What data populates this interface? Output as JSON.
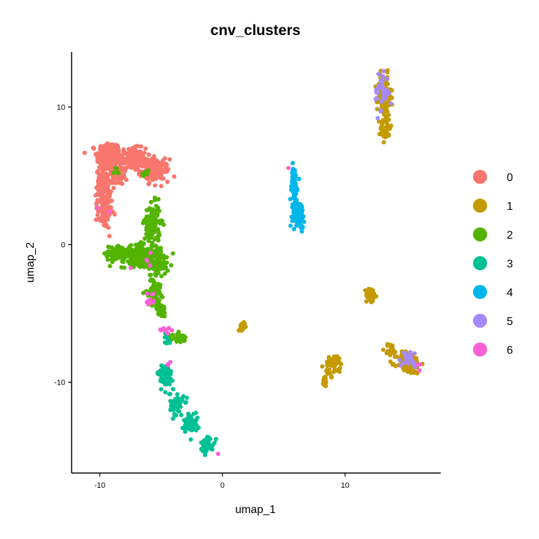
{
  "chart_data": {
    "type": "scatter",
    "title": "cnv_clusters",
    "xlabel": "umap_1",
    "ylabel": "umap_2",
    "xlim": [
      -12.3,
      17.8
    ],
    "ylim": [
      -16.6,
      14
    ],
    "xticks": [
      -10,
      0,
      10
    ],
    "yticks": [
      -10,
      0,
      10
    ],
    "grid": false,
    "legend_position": "right",
    "series": [
      {
        "name": "0",
        "color": "#F8766D",
        "clusters": [
          {
            "x": -9.3,
            "y": 6.4,
            "sx": 0.6,
            "sy": 0.7,
            "n": 220
          },
          {
            "x": -7.5,
            "y": 6.2,
            "sx": 0.8,
            "sy": 0.5,
            "n": 160
          },
          {
            "x": -5.5,
            "y": 5.4,
            "sx": 0.7,
            "sy": 0.5,
            "n": 140
          },
          {
            "x": -9.7,
            "y": 4.2,
            "sx": 0.35,
            "sy": 0.8,
            "n": 110
          },
          {
            "x": -9.6,
            "y": 2.3,
            "sx": 0.35,
            "sy": 0.7,
            "n": 90
          },
          {
            "x": -8.6,
            "y": 5.0,
            "sx": 0.5,
            "sy": 0.4,
            "n": 50
          }
        ]
      },
      {
        "name": "1",
        "color": "#C49A00",
        "clusters": [
          {
            "x": 13.2,
            "y": 10.7,
            "sx": 0.35,
            "sy": 1.0,
            "n": 110
          },
          {
            "x": 13.3,
            "y": 8.5,
            "sx": 0.25,
            "sy": 0.6,
            "n": 40
          },
          {
            "x": 12.1,
            "y": -3.7,
            "sx": 0.25,
            "sy": 0.35,
            "n": 40
          },
          {
            "x": 15.2,
            "y": -8.6,
            "sx": 0.6,
            "sy": 0.5,
            "n": 110
          },
          {
            "x": 13.7,
            "y": -7.6,
            "sx": 0.3,
            "sy": 0.3,
            "n": 20
          },
          {
            "x": 9.1,
            "y": -8.8,
            "sx": 0.45,
            "sy": 0.5,
            "n": 45
          },
          {
            "x": 8.3,
            "y": -9.9,
            "sx": 0.2,
            "sy": 0.3,
            "n": 15
          },
          {
            "x": 1.7,
            "y": -5.8,
            "sx": 0.15,
            "sy": 0.2,
            "n": 12
          },
          {
            "x": 1.5,
            "y": -6.2,
            "sx": 0.1,
            "sy": 0.1,
            "n": 4
          }
        ]
      },
      {
        "name": "2",
        "color": "#53B400",
        "clusters": [
          {
            "x": -6.6,
            "y": -0.8,
            "sx": 1.0,
            "sy": 0.45,
            "n": 230
          },
          {
            "x": -8.8,
            "y": -0.6,
            "sx": 0.5,
            "sy": 0.35,
            "n": 70
          },
          {
            "x": -5.7,
            "y": 1.5,
            "sx": 0.4,
            "sy": 0.9,
            "n": 130
          },
          {
            "x": -5.2,
            "y": -1.5,
            "sx": 0.5,
            "sy": 0.4,
            "n": 70
          },
          {
            "x": -5.6,
            "y": -3.4,
            "sx": 0.35,
            "sy": 0.6,
            "n": 70
          },
          {
            "x": -5.0,
            "y": -4.8,
            "sx": 0.2,
            "sy": 0.35,
            "n": 35
          },
          {
            "x": -3.6,
            "y": -6.8,
            "sx": 0.45,
            "sy": 0.2,
            "n": 25
          },
          {
            "x": -6.2,
            "y": 5.2,
            "sx": 0.25,
            "sy": 0.15,
            "n": 8
          },
          {
            "x": -8.7,
            "y": 5.4,
            "sx": 0.2,
            "sy": 0.15,
            "n": 5
          }
        ]
      },
      {
        "name": "3",
        "color": "#00C094",
        "clusters": [
          {
            "x": -4.7,
            "y": -9.6,
            "sx": 0.35,
            "sy": 0.6,
            "n": 70
          },
          {
            "x": -3.7,
            "y": -11.6,
            "sx": 0.35,
            "sy": 0.5,
            "n": 60
          },
          {
            "x": -2.6,
            "y": -13.0,
            "sx": 0.35,
            "sy": 0.5,
            "n": 55
          },
          {
            "x": -1.2,
            "y": -14.5,
            "sx": 0.35,
            "sy": 0.4,
            "n": 40
          },
          {
            "x": -4.5,
            "y": -6.8,
            "sx": 0.15,
            "sy": 0.25,
            "n": 12
          }
        ]
      },
      {
        "name": "4",
        "color": "#00B6EB",
        "clusters": [
          {
            "x": 5.8,
            "y": 4.4,
            "sx": 0.2,
            "sy": 0.8,
            "n": 80
          },
          {
            "x": 6.2,
            "y": 2.2,
            "sx": 0.3,
            "sy": 0.6,
            "n": 90
          }
        ]
      },
      {
        "name": "5",
        "color": "#A58AFF",
        "clusters": [
          {
            "x": 13.0,
            "y": 11.0,
            "sx": 0.35,
            "sy": 1.1,
            "n": 35
          },
          {
            "x": 15.2,
            "y": -8.3,
            "sx": 0.55,
            "sy": 0.4,
            "n": 20
          }
        ]
      },
      {
        "name": "6",
        "color": "#FB61D7",
        "clusters": [
          {
            "x": -4.6,
            "y": -6.2,
            "sx": 0.4,
            "sy": 0.2,
            "n": 10
          },
          {
            "x": -5.8,
            "y": -3.9,
            "sx": 0.25,
            "sy": 0.5,
            "n": 10
          },
          {
            "x": -6.5,
            "y": -1.3,
            "sx": 0.6,
            "sy": 0.3,
            "n": 5
          },
          {
            "x": -4.5,
            "y": -8.6,
            "sx": 0.15,
            "sy": 0.15,
            "n": 3
          },
          {
            "x": -0.3,
            "y": -15.2,
            "sx": 0.05,
            "sy": 0.05,
            "n": 1
          },
          {
            "x": 5.4,
            "y": 5.5,
            "sx": 0.05,
            "sy": 0.05,
            "n": 1
          },
          {
            "x": 16.0,
            "y": -8.6,
            "sx": 0.2,
            "sy": 0.3,
            "n": 3
          },
          {
            "x": -9.6,
            "y": 2.5,
            "sx": 0.2,
            "sy": 0.4,
            "n": 2
          }
        ]
      }
    ]
  }
}
